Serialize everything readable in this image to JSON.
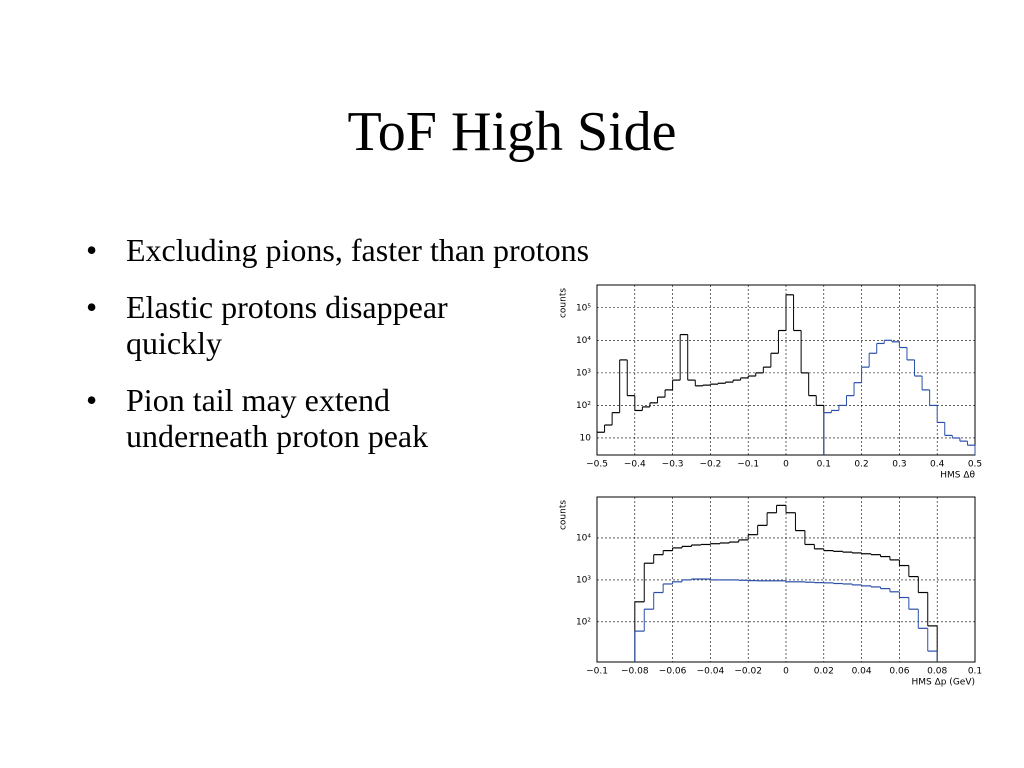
{
  "title": "ToF High Side",
  "bullets": [
    "Excluding pions, faster than protons",
    "Elastic protons disappear quickly",
    "Pion tail may extend underneath proton peak"
  ],
  "chart_data": [
    {
      "type": "histogram",
      "y_label": "counts",
      "x_label": "HMS Δθ",
      "log_y": true,
      "grid": true,
      "xlim": [
        -0.5,
        0.5
      ],
      "ylim": [
        3,
        500000
      ],
      "xticks": [
        {
          "value": -0.5,
          "label": "−0.5"
        },
        {
          "value": -0.4,
          "label": "−0.4"
        },
        {
          "value": -0.3,
          "label": "−0.3"
        },
        {
          "value": -0.2,
          "label": "−0.2"
        },
        {
          "value": -0.1,
          "label": "−0.1"
        },
        0,
        0.1,
        0.2,
        0.3,
        0.4,
        0.5
      ],
      "yticks": [
        10,
        {
          "value": 100,
          "label": "10²"
        },
        {
          "value": 1000,
          "label": "10³"
        },
        {
          "value": 10000,
          "label": "10⁴"
        },
        {
          "value": 100000,
          "label": "10⁵"
        }
      ],
      "bins": [
        -0.5,
        -0.48,
        -0.46,
        -0.44,
        -0.42,
        -0.4,
        -0.38,
        -0.36,
        -0.34,
        -0.32,
        -0.3,
        -0.28,
        -0.26,
        -0.24,
        -0.22,
        -0.2,
        -0.18,
        -0.16,
        -0.14,
        -0.12,
        -0.1,
        -0.08,
        -0.06,
        -0.04,
        -0.02,
        0,
        0.02,
        0.04,
        0.06,
        0.08,
        0.1,
        0.12,
        0.14,
        0.16,
        0.18,
        0.2,
        0.22,
        0.24,
        0.26,
        0.28,
        0.3,
        0.32,
        0.34,
        0.36,
        0.38,
        0.4,
        0.42,
        0.44,
        0.46,
        0.48,
        0.5
      ],
      "series": [
        {
          "color": "#000000",
          "values": [
            15,
            25,
            60,
            2500,
            200,
            70,
            90,
            120,
            180,
            300,
            600,
            15000,
            600,
            400,
            420,
            450,
            480,
            520,
            600,
            700,
            800,
            1000,
            1500,
            4000,
            20000,
            250000,
            20000,
            1000,
            200,
            100,
            null,
            null,
            null,
            null,
            null,
            null,
            null,
            null,
            null,
            null,
            null,
            null,
            null,
            null,
            null,
            null,
            null,
            null,
            null,
            null
          ]
        },
        {
          "color": "#2a4fa8",
          "values": [
            null,
            null,
            null,
            null,
            null,
            null,
            null,
            null,
            null,
            null,
            null,
            null,
            null,
            null,
            null,
            null,
            null,
            null,
            null,
            null,
            null,
            null,
            null,
            null,
            null,
            null,
            null,
            null,
            null,
            null,
            60,
            70,
            100,
            200,
            500,
            1500,
            4000,
            8000,
            10000,
            9000,
            6000,
            2500,
            800,
            300,
            100,
            30,
            12,
            10,
            8,
            6
          ]
        }
      ]
    },
    {
      "type": "histogram",
      "y_label": "counts",
      "x_label": "HMS Δp (GeV)",
      "log_y": true,
      "grid": true,
      "xlim": [
        -0.1,
        0.1
      ],
      "ylim": [
        11,
        95000
      ],
      "xticks": [
        {
          "value": -0.1,
          "label": "−0.1"
        },
        {
          "value": -0.08,
          "label": "−0.08"
        },
        {
          "value": -0.06,
          "label": "−0.06"
        },
        {
          "value": -0.04,
          "label": "−0.04"
        },
        {
          "value": -0.02,
          "label": "−0.02"
        },
        0,
        0.02,
        0.04,
        0.06,
        0.08,
        0.1
      ],
      "yticks": [
        {
          "value": 100,
          "label": "10²"
        },
        {
          "value": 1000,
          "label": "10³"
        },
        {
          "value": 10000,
          "label": "10⁴"
        }
      ],
      "bins": [
        -0.08,
        -0.075,
        -0.07,
        -0.065,
        -0.06,
        -0.055,
        -0.05,
        -0.045,
        -0.04,
        -0.035,
        -0.03,
        -0.025,
        -0.02,
        -0.015,
        -0.01,
        -0.005,
        0,
        0.005,
        0.01,
        0.015,
        0.02,
        0.025,
        0.03,
        0.035,
        0.04,
        0.045,
        0.05,
        0.055,
        0.06,
        0.065,
        0.07,
        0.075,
        0.08
      ],
      "series": [
        {
          "color": "#000000",
          "values": [
            300,
            2500,
            4000,
            5000,
            5800,
            6300,
            6800,
            7000,
            7300,
            7600,
            8000,
            9000,
            12000,
            20000,
            40000,
            60000,
            40000,
            15000,
            7000,
            5500,
            5000,
            4800,
            4600,
            4400,
            4200,
            4000,
            3600,
            3000,
            2200,
            1200,
            500,
            80
          ]
        },
        {
          "color": "#2a4fa8",
          "values": [
            60,
            200,
            500,
            800,
            900,
            1000,
            1050,
            1050,
            1000,
            1000,
            1000,
            980,
            960,
            950,
            950,
            950,
            900,
            900,
            880,
            860,
            850,
            820,
            800,
            760,
            720,
            680,
            620,
            520,
            380,
            200,
            70,
            20
          ]
        }
      ]
    }
  ]
}
